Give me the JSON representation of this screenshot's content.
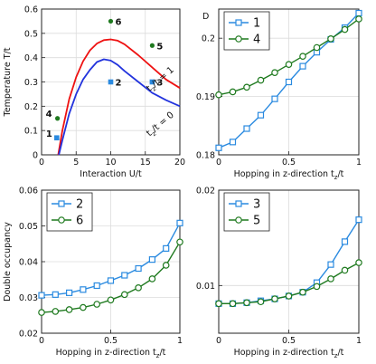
{
  "chart_data": [
    {
      "type": "line",
      "xlabel": "Interaction U/t",
      "ylabel": "Temperature T/t",
      "xlim": [
        0,
        20
      ],
      "ylim": [
        0,
        0.6
      ],
      "xticks": [
        "0",
        "5",
        "10",
        "15",
        "20"
      ],
      "yticks": [
        "0",
        "0.1",
        "0.2",
        "0.3",
        "0.4",
        "0.5",
        "0.6"
      ],
      "grid": true,
      "series": [
        {
          "name": "tz/t = 1",
          "color": "#ee1111",
          "x": [
            2.4,
            3,
            4,
            5,
            6,
            7,
            8,
            9,
            10,
            11,
            12,
            14,
            16,
            18,
            20
          ],
          "y": [
            0.0,
            0.1,
            0.23,
            0.32,
            0.385,
            0.43,
            0.458,
            0.472,
            0.475,
            0.47,
            0.455,
            0.41,
            0.36,
            0.31,
            0.275
          ]
        },
        {
          "name": "tz/t = 0",
          "color": "#2233dd",
          "x": [
            2.5,
            3,
            4,
            5,
            6,
            7,
            8,
            9,
            10,
            11,
            12,
            14,
            16,
            18,
            20
          ],
          "y": [
            0.0,
            0.06,
            0.17,
            0.25,
            0.31,
            0.35,
            0.382,
            0.393,
            0.388,
            0.37,
            0.345,
            0.3,
            0.255,
            0.225,
            0.2
          ]
        }
      ],
      "points": [
        {
          "label": "1",
          "x": 2.2,
          "y": 0.07,
          "color": "#2a8ae0",
          "shape": "square"
        },
        {
          "label": "2",
          "x": 10,
          "y": 0.3,
          "color": "#2a8ae0",
          "shape": "square"
        },
        {
          "label": "3",
          "x": 16,
          "y": 0.3,
          "color": "#2a8ae0",
          "shape": "square"
        },
        {
          "label": "4",
          "x": 2.3,
          "y": 0.15,
          "color": "#1f7a1f",
          "shape": "circle"
        },
        {
          "label": "5",
          "x": 16,
          "y": 0.45,
          "color": "#1f7a1f",
          "shape": "circle"
        },
        {
          "label": "6",
          "x": 10,
          "y": 0.55,
          "color": "#1f7a1f",
          "shape": "circle"
        }
      ],
      "annotations": [
        "tz/t = 1",
        "tz/t = 0"
      ]
    },
    {
      "type": "line",
      "title": "D",
      "xlabel": "Hopping in z-direction tz/t",
      "ylim": [
        0.18,
        0.205
      ],
      "xticks": [
        "0",
        "0.5",
        "1"
      ],
      "yticks": [
        "0.18",
        "0.19",
        "0.2"
      ],
      "legend": "top-left",
      "grid": true,
      "series": [
        {
          "name": "1",
          "color": "#2a8ae0",
          "marker": "square",
          "x": [
            0,
            0.1,
            0.2,
            0.3,
            0.4,
            0.5,
            0.6,
            0.7,
            0.8,
            0.9,
            1.0
          ],
          "y": [
            0.1812,
            0.1822,
            0.1845,
            0.1868,
            0.1896,
            0.1925,
            0.1952,
            0.1976,
            0.1998,
            0.2018,
            0.2043
          ]
        },
        {
          "name": "4",
          "color": "#1f7a1f",
          "marker": "circle",
          "x": [
            0,
            0.1,
            0.2,
            0.3,
            0.4,
            0.5,
            0.6,
            0.7,
            0.8,
            0.9,
            1.0
          ],
          "y": [
            0.1903,
            0.1908,
            0.1916,
            0.1928,
            0.1941,
            0.1955,
            0.1969,
            0.1984,
            0.1999,
            0.2015,
            0.2033
          ]
        }
      ]
    },
    {
      "type": "line",
      "xlabel": "Hopping in z-direction tz/t",
      "ylabel": "Double occupancy",
      "ylim": [
        0.02,
        0.06
      ],
      "xticks": [
        "0",
        "0.5",
        "1"
      ],
      "yticks": [
        "0.02",
        "0.03",
        "0.04",
        "0.05",
        "0.06"
      ],
      "legend": "top-left",
      "grid": true,
      "series": [
        {
          "name": "2",
          "color": "#2a8ae0",
          "marker": "square",
          "x": [
            0,
            0.1,
            0.2,
            0.3,
            0.4,
            0.5,
            0.6,
            0.7,
            0.8,
            0.9,
            1.0
          ],
          "y": [
            0.0306,
            0.0308,
            0.0313,
            0.0322,
            0.0333,
            0.0347,
            0.0362,
            0.0381,
            0.0406,
            0.0437,
            0.0508
          ]
        },
        {
          "name": "6",
          "color": "#1f7a1f",
          "marker": "circle",
          "x": [
            0,
            0.1,
            0.2,
            0.3,
            0.4,
            0.5,
            0.6,
            0.7,
            0.8,
            0.9,
            1.0
          ],
          "y": [
            0.0258,
            0.0261,
            0.0266,
            0.0272,
            0.0281,
            0.0293,
            0.0308,
            0.0327,
            0.0352,
            0.039,
            0.0455
          ]
        }
      ]
    },
    {
      "type": "line",
      "xlabel": "Hopping in z-direction tz/t",
      "ylim": [
        0.005,
        0.02
      ],
      "xticks": [
        "0",
        "0.5",
        "1"
      ],
      "yticks": [
        "0.01",
        "0.02"
      ],
      "legend": "top-left",
      "grid": true,
      "series": [
        {
          "name": "3",
          "color": "#2a8ae0",
          "marker": "square",
          "x": [
            0,
            0.1,
            0.2,
            0.3,
            0.4,
            0.5,
            0.6,
            0.7,
            0.8,
            0.9,
            1.0
          ],
          "y": [
            0.0081,
            0.0081,
            0.0082,
            0.0084,
            0.0086,
            0.0089,
            0.0093,
            0.0103,
            0.0122,
            0.0146,
            0.0169
          ]
        },
        {
          "name": "5",
          "color": "#1f7a1f",
          "marker": "circle",
          "x": [
            0,
            0.1,
            0.2,
            0.3,
            0.4,
            0.5,
            0.6,
            0.7,
            0.8,
            0.9,
            1.0
          ],
          "y": [
            0.0081,
            0.0081,
            0.0082,
            0.0083,
            0.0086,
            0.0089,
            0.0093,
            0.0099,
            0.0107,
            0.0116,
            0.0124
          ]
        }
      ]
    }
  ]
}
